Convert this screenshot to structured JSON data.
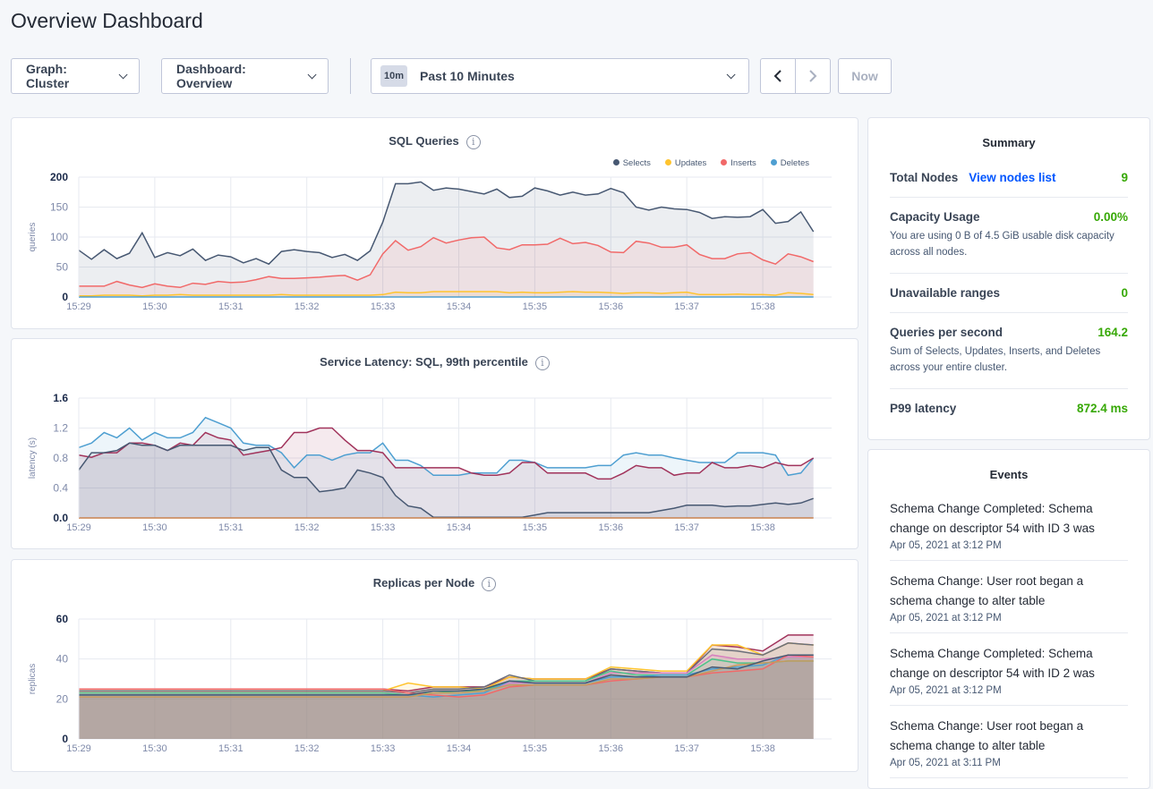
{
  "page": {
    "title": "Overview Dashboard"
  },
  "toolbar": {
    "graph": "Graph: Cluster",
    "dashboard": "Dashboard: Overview",
    "time_badge": "10m",
    "time_range": "Past 10 Minutes",
    "now": "Now",
    "prev_icon": "chevron-left-icon",
    "next_icon": "chevron-right-icon"
  },
  "summary": {
    "title": "Summary",
    "total_nodes": {
      "label": "Total Nodes",
      "link": "View nodes list",
      "value": "9"
    },
    "capacity": {
      "label": "Capacity Usage",
      "value": "0.00%",
      "desc": "You are using 0 B of 4.5 GiB usable disk capacity across all nodes."
    },
    "unavailable": {
      "label": "Unavailable ranges",
      "value": "0"
    },
    "qps": {
      "label": "Queries per second",
      "value": "164.2",
      "desc": "Sum of Selects, Updates, Inserts, and Deletes across your entire cluster."
    },
    "p99": {
      "label": "P99 latency",
      "value": "872.4 ms"
    }
  },
  "events": {
    "title": "Events",
    "items": [
      {
        "text": "Schema Change Completed: Schema change on descriptor 54 with ID 3 was",
        "date": "Apr 05, 2021 at 3:12 PM"
      },
      {
        "text": "Schema Change: User root began a schema change to alter table",
        "date": "Apr 05, 2021 at 3:12 PM"
      },
      {
        "text": "Schema Change Completed: Schema change on descriptor 54 with ID 2 was",
        "date": "Apr 05, 2021 at 3:12 PM"
      },
      {
        "text": "Schema Change: User root began a schema change to alter table",
        "date": "Apr 05, 2021 at 3:11 PM"
      }
    ]
  },
  "colors": {
    "green": "#37a806",
    "link": "#0055ff"
  },
  "chart_data": [
    {
      "type": "area",
      "title": "SQL Queries",
      "ylabel": "queries",
      "ylim": [
        0,
        200
      ],
      "yticks": [
        "0",
        "50",
        "100",
        "150",
        "200"
      ],
      "xticks": [
        "15:29",
        "15:30",
        "15:31",
        "15:32",
        "15:33",
        "15:34",
        "15:35",
        "15:36",
        "15:37",
        "15:38"
      ],
      "legend": "top-right",
      "grid": true,
      "x": [
        "15:29:00",
        "15:29:10",
        "15:29:20",
        "15:29:30",
        "15:29:40",
        "15:29:50",
        "15:30:00",
        "15:30:10",
        "15:30:20",
        "15:30:30",
        "15:30:40",
        "15:30:50",
        "15:31:00",
        "15:31:10",
        "15:31:20",
        "15:31:30",
        "15:31:40",
        "15:31:50",
        "15:32:00",
        "15:32:10",
        "15:32:20",
        "15:32:30",
        "15:32:40",
        "15:32:50",
        "15:33:00",
        "15:33:10",
        "15:33:20",
        "15:33:30",
        "15:33:40",
        "15:33:50",
        "15:34:00",
        "15:34:10",
        "15:34:20",
        "15:34:30",
        "15:34:40",
        "15:34:50",
        "15:35:00",
        "15:35:10",
        "15:35:20",
        "15:35:30",
        "15:35:40",
        "15:35:50",
        "15:36:00",
        "15:36:10",
        "15:36:20",
        "15:36:30",
        "15:36:40",
        "15:36:50",
        "15:37:00",
        "15:37:10",
        "15:37:20",
        "15:37:30",
        "15:37:40",
        "15:37:50",
        "15:38:00",
        "15:38:10",
        "15:38:20",
        "15:38:30",
        "15:38:40"
      ],
      "series": [
        {
          "name": "Selects",
          "color": "#475872",
          "values": [
            78,
            63,
            79,
            64,
            73,
            107,
            66,
            74,
            69,
            80,
            61,
            70,
            67,
            57,
            64,
            55,
            76,
            79,
            76,
            74,
            66,
            71,
            61,
            77,
            125,
            189,
            189,
            192,
            178,
            182,
            180,
            176,
            172,
            180,
            166,
            168,
            182,
            177,
            170,
            175,
            170,
            172,
            181,
            174,
            150,
            145,
            150,
            147,
            146,
            141,
            131,
            134,
            133,
            134,
            146,
            123,
            126,
            142,
            109
          ]
        },
        {
          "name": "Updates",
          "color": "#ffc42e",
          "values": [
            2,
            2,
            3,
            3,
            3,
            2,
            3,
            3,
            4,
            3,
            3,
            3,
            3,
            3,
            3,
            3,
            4,
            3,
            3,
            3,
            3,
            3,
            3,
            3,
            4,
            8,
            7,
            7,
            9,
            9,
            9,
            9,
            9,
            9,
            7,
            8,
            7,
            7,
            8,
            9,
            8,
            8,
            7,
            6,
            7,
            7,
            6,
            7,
            8,
            4,
            4,
            4,
            5,
            4,
            4,
            3,
            7,
            6,
            4
          ]
        },
        {
          "name": "Inserts",
          "color": "#f16969",
          "values": [
            18,
            18,
            18,
            26,
            20,
            16,
            22,
            18,
            16,
            23,
            21,
            26,
            24,
            25,
            29,
            34,
            31,
            31,
            32,
            33,
            35,
            36,
            28,
            37,
            72,
            94,
            78,
            84,
            99,
            90,
            95,
            99,
            100,
            82,
            79,
            87,
            87,
            88,
            98,
            89,
            91,
            86,
            75,
            74,
            93,
            90,
            83,
            83,
            87,
            71,
            64,
            64,
            72,
            74,
            62,
            55,
            72,
            67,
            59
          ]
        },
        {
          "name": "Deletes",
          "color": "#4e9fd1",
          "values": [
            0,
            0,
            0,
            0,
            0,
            0,
            0,
            0,
            0,
            0,
            0,
            0,
            0,
            0,
            0,
            0,
            0,
            0,
            0,
            0,
            0,
            0,
            0,
            0,
            0,
            0,
            0,
            0,
            0,
            0,
            0,
            0,
            0,
            0,
            0,
            0,
            0,
            0,
            0,
            0,
            0,
            0,
            0,
            0,
            0,
            0,
            0,
            0,
            0,
            0,
            0,
            0,
            0,
            0,
            0,
            0,
            0,
            0,
            0
          ]
        }
      ]
    },
    {
      "type": "area",
      "title": "Service Latency: SQL, 99th percentile",
      "ylabel": "latency (s)",
      "ylim": [
        0,
        1.6
      ],
      "yticks": [
        "0.0",
        "0.4",
        "0.8",
        "1.2",
        "1.6"
      ],
      "xticks": [
        "15:29",
        "15:30",
        "15:31",
        "15:32",
        "15:33",
        "15:34",
        "15:35",
        "15:36",
        "15:37",
        "15:38"
      ],
      "grid": true,
      "x": "same as SQL Queries",
      "series": [
        {
          "color": "#4e9fd1",
          "values": [
            0.94,
            1.0,
            1.14,
            1.07,
            1.2,
            1.04,
            1.14,
            1.07,
            1.07,
            1.14,
            1.34,
            1.27,
            1.2,
            1.0,
            0.97,
            0.97,
            0.87,
            0.67,
            0.84,
            0.84,
            0.77,
            0.84,
            0.87,
            0.87,
            1.0,
            0.77,
            0.77,
            0.7,
            0.57,
            0.57,
            0.57,
            0.6,
            0.6,
            0.6,
            0.77,
            0.77,
            0.74,
            0.67,
            0.67,
            0.67,
            0.67,
            0.7,
            0.7,
            0.84,
            0.87,
            0.84,
            0.84,
            0.8,
            0.77,
            0.74,
            0.74,
            0.74,
            0.87,
            0.87,
            0.87,
            0.84,
            0.57,
            0.6,
            0.8
          ]
        },
        {
          "color": "#a1335b",
          "values": [
            0.84,
            0.81,
            0.87,
            0.87,
            1.0,
            1.0,
            0.97,
            0.9,
            1.0,
            0.97,
            1.14,
            1.07,
            1.04,
            0.84,
            0.87,
            0.9,
            0.94,
            1.14,
            1.14,
            1.2,
            1.2,
            1.04,
            0.9,
            0.9,
            0.87,
            0.67,
            0.67,
            0.67,
            0.67,
            0.67,
            0.67,
            0.6,
            0.57,
            0.57,
            0.6,
            0.74,
            0.74,
            0.6,
            0.6,
            0.6,
            0.6,
            0.52,
            0.52,
            0.6,
            0.7,
            0.67,
            0.67,
            0.57,
            0.6,
            0.6,
            0.74,
            0.67,
            0.67,
            0.7,
            0.67,
            0.74,
            0.7,
            0.7,
            0.8
          ]
        },
        {
          "color": "#475872",
          "values": [
            0.64,
            0.87,
            0.87,
            0.9,
            1.0,
            0.97,
            0.97,
            0.9,
            0.97,
            0.97,
            0.97,
            0.97,
            0.97,
            0.9,
            0.94,
            0.94,
            0.64,
            0.54,
            0.54,
            0.35,
            0.37,
            0.4,
            0.64,
            0.6,
            0.54,
            0.3,
            0.16,
            0.13,
            0.01,
            0.01,
            0.01,
            0.01,
            0.01,
            0.01,
            0.01,
            0.01,
            0.04,
            0.07,
            0.07,
            0.07,
            0.07,
            0.07,
            0.07,
            0.07,
            0.07,
            0.07,
            0.1,
            0.13,
            0.17,
            0.17,
            0.17,
            0.15,
            0.16,
            0.16,
            0.18,
            0.2,
            0.18,
            0.2,
            0.26
          ]
        },
        {
          "color": "#c9824f",
          "values": [
            0,
            0,
            0,
            0,
            0,
            0,
            0,
            0,
            0,
            0,
            0,
            0,
            0,
            0,
            0,
            0,
            0,
            0,
            0,
            0,
            0,
            0,
            0,
            0,
            0,
            0,
            0,
            0,
            0,
            0,
            0,
            0,
            0,
            0,
            0,
            0,
            0,
            0,
            0,
            0,
            0,
            0,
            0,
            0,
            0,
            0,
            0,
            0,
            0,
            0,
            0,
            0,
            0,
            0,
            0,
            0,
            0,
            0,
            0
          ]
        }
      ]
    },
    {
      "type": "area",
      "title": "Replicas per Node",
      "ylabel": "replicas",
      "ylim": [
        0,
        60
      ],
      "yticks": [
        "0",
        "20",
        "40",
        "60"
      ],
      "xticks": [
        "15:29",
        "15:30",
        "15:31",
        "15:32",
        "15:33",
        "15:34",
        "15:35",
        "15:36",
        "15:37",
        "15:38"
      ],
      "grid": true,
      "x": [
        "15:29:00",
        "15:29:20",
        "15:29:40",
        "15:30:00",
        "15:30:20",
        "15:30:40",
        "15:31:00",
        "15:31:20",
        "15:31:40",
        "15:32:00",
        "15:32:20",
        "15:32:40",
        "15:33:00",
        "15:33:20",
        "15:33:40",
        "15:34:00",
        "15:34:20",
        "15:34:40",
        "15:35:00",
        "15:35:20",
        "15:35:40",
        "15:36:00",
        "15:36:20",
        "15:36:40",
        "15:37:00",
        "15:37:20",
        "15:37:40",
        "15:38:00",
        "15:38:20",
        "15:38:40"
      ],
      "series": [
        {
          "color": "#a1335b",
          "values": [
            25,
            25,
            25,
            25,
            25,
            25,
            25,
            25,
            25,
            25,
            25,
            25,
            25,
            24,
            26,
            26,
            26,
            31,
            30,
            30,
            30,
            35,
            34,
            33,
            33,
            47,
            46,
            44,
            52,
            52
          ]
        },
        {
          "color": "#ffc42e",
          "values": [
            24,
            24,
            24,
            24,
            24,
            24,
            24,
            24,
            24,
            24,
            24,
            24,
            24,
            28,
            26,
            26,
            25,
            31,
            30,
            30,
            30,
            36,
            35,
            34,
            34,
            47,
            47,
            42,
            48,
            47
          ]
        },
        {
          "color": "#6b6f7a",
          "values": [
            24,
            24,
            24,
            24,
            24,
            24,
            24,
            24,
            24,
            24,
            24,
            24,
            24,
            23,
            25,
            25,
            26,
            32,
            29,
            29,
            29,
            35,
            34,
            33,
            33,
            45,
            44,
            42,
            48,
            47
          ]
        },
        {
          "color": "#d77fbf",
          "values": [
            23,
            23,
            23,
            23,
            23,
            23,
            23,
            23,
            23,
            23,
            23,
            23,
            23,
            22,
            23,
            24,
            24,
            28,
            28,
            28,
            28,
            33,
            33,
            33,
            33,
            42,
            40,
            40,
            41,
            41
          ]
        },
        {
          "color": "#4dc38a",
          "values": [
            23,
            23,
            23,
            23,
            23,
            23,
            23,
            23,
            23,
            23,
            23,
            23,
            23,
            22,
            23,
            24,
            24,
            29,
            29,
            29,
            29,
            34,
            32,
            32,
            32,
            40,
            38,
            38,
            39,
            39
          ]
        },
        {
          "color": "#4e9fd1",
          "values": [
            22,
            22,
            22,
            22,
            22,
            22,
            22,
            22,
            22,
            22,
            22,
            22,
            22,
            22,
            21,
            22,
            23,
            29,
            28,
            28,
            28,
            31,
            31,
            32,
            32,
            35,
            36,
            37,
            42,
            42
          ]
        },
        {
          "color": "#f16969",
          "values": [
            25,
            25,
            25,
            25,
            25,
            25,
            25,
            25,
            25,
            25,
            25,
            25,
            25,
            23,
            22,
            21,
            22,
            26,
            27,
            27,
            27,
            29,
            30,
            31,
            31,
            33,
            34,
            35,
            42,
            41
          ]
        },
        {
          "color": "#c69a5d",
          "values": [
            21,
            21,
            21,
            21,
            21,
            21,
            21,
            21,
            21,
            21,
            21,
            21,
            21,
            21,
            23,
            23,
            24,
            27,
            27,
            27,
            27,
            30,
            30,
            31,
            31,
            34,
            37,
            38,
            39,
            39
          ]
        },
        {
          "color": "#475872",
          "values": [
            22,
            22,
            22,
            22,
            22,
            22,
            22,
            22,
            22,
            22,
            22,
            22,
            22,
            22,
            24,
            24,
            25,
            29,
            28,
            28,
            28,
            32,
            31,
            31,
            31,
            36,
            35,
            39,
            42,
            42
          ]
        }
      ]
    }
  ]
}
